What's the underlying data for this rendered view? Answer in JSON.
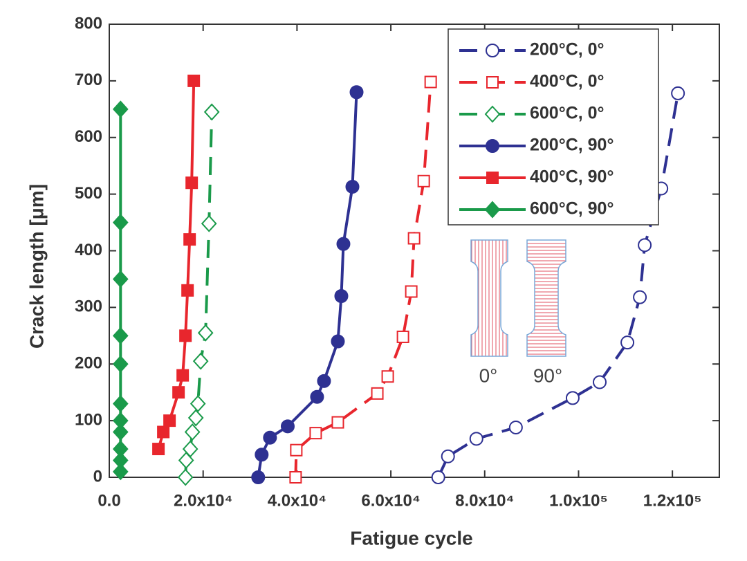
{
  "chart_data": {
    "type": "line",
    "xlabel": "Fatigue cycle",
    "ylabel": "Crack length [μm]",
    "xlim": [
      0,
      130000
    ],
    "ylim": [
      0,
      800
    ],
    "xticks": [
      {
        "value": 0,
        "label": "0.0"
      },
      {
        "value": 20000,
        "label": "2.0x10⁴"
      },
      {
        "value": 40000,
        "label": "4.0x10⁴"
      },
      {
        "value": 60000,
        "label": "6.0x10⁴"
      },
      {
        "value": 80000,
        "label": "8.0x10⁴"
      },
      {
        "value": 100000,
        "label": "1.0x10⁵"
      },
      {
        "value": 120000,
        "label": "1.2x10⁵"
      }
    ],
    "yticks": [
      0,
      100,
      200,
      300,
      400,
      500,
      600,
      700,
      800
    ],
    "legend": "upper right",
    "annotations": [
      "0°",
      "90°"
    ],
    "series": [
      {
        "name": "200°C, 0°",
        "color": "#2e3192",
        "dashed": true,
        "marker": "circle",
        "filled": false,
        "x": [
          70111,
          72177,
          78229,
          86642,
          98745,
          104502,
          110406,
          113063,
          114096,
          117638,
          121181
        ],
        "values": [
          0,
          37,
          68,
          88,
          140,
          168,
          238,
          318,
          410,
          510,
          678
        ]
      },
      {
        "name": "400°C, 0°",
        "color": "#e8262d",
        "dashed": true,
        "marker": "square",
        "filled": false,
        "x": [
          39705,
          39852,
          43985,
          48708,
          57122,
          59336,
          62583,
          64354,
          64945,
          67011,
          68487
        ],
        "values": [
          0,
          48,
          78,
          97,
          148,
          178,
          248,
          328,
          422,
          523,
          698
        ]
      },
      {
        "name": "600°C, 0°",
        "color": "#1a9a4a",
        "dashed": true,
        "marker": "diamond",
        "filled": false,
        "x": [
          16236,
          16384,
          17269,
          17712,
          18450,
          18893,
          19483,
          20517,
          21255,
          21845
        ],
        "values": [
          0,
          30,
          50,
          80,
          105,
          130,
          205,
          255,
          448,
          645
        ]
      },
      {
        "name": "200°C, 90°",
        "color": "#2e3192",
        "dashed": false,
        "marker": "circle",
        "filled": true,
        "x": [
          31734,
          32472,
          34244,
          38023,
          44280,
          45756,
          48708,
          49446,
          49889,
          51808,
          52694
        ],
        "values": [
          0,
          40,
          70,
          90,
          142,
          170,
          240,
          320,
          412,
          513,
          680
        ]
      },
      {
        "name": "400°C, 90°",
        "color": "#e8262d",
        "dashed": false,
        "marker": "square",
        "filled": true,
        "x": [
          10480,
          11513,
          12841,
          14760,
          15646,
          16236,
          16679,
          17122,
          17565,
          18007
        ],
        "values": [
          50,
          80,
          100,
          150,
          180,
          250,
          330,
          420,
          520,
          700
        ]
      },
      {
        "name": "600°C, 90°",
        "color": "#1a9a4a",
        "dashed": false,
        "marker": "diamond",
        "filled": true,
        "x": [
          2400,
          2400,
          2400,
          2400,
          2400,
          2400,
          2400,
          2400,
          2400,
          2400,
          2400
        ],
        "values": [
          10,
          30,
          50,
          80,
          100,
          130,
          200,
          250,
          350,
          450,
          650
        ]
      }
    ]
  }
}
